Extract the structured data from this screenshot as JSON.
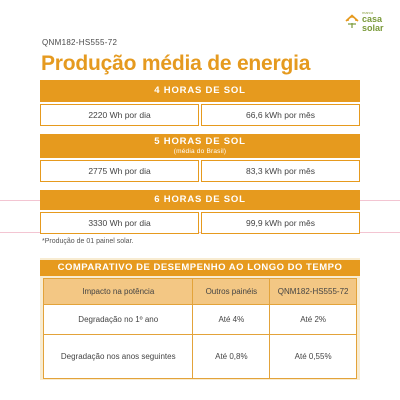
{
  "model": "QNM182-HS555-72",
  "title": "Produção média de energia",
  "logo": {
    "line1": "marca",
    "line2": "casa",
    "line3": "solar"
  },
  "scenarios": [
    {
      "label": "4 HORAS DE SOL",
      "sub": "",
      "daily": "2220 Wh por dia",
      "monthly": "66,6 kWh por mês"
    },
    {
      "label": "5 HORAS DE SOL",
      "sub": "(média do Brasil)",
      "daily": "2775 Wh por dia",
      "monthly": "83,3 kWh por mês"
    },
    {
      "label": "6 HORAS DE SOL",
      "sub": "",
      "daily": "3330 Wh por dia",
      "monthly": "99,9 kWh por mês"
    }
  ],
  "note": "*Produção de 01 painel solar.",
  "comparison": {
    "title": "COMPARATIVO DE DESEMPENHO AO LONGO DO TEMPO",
    "headers": [
      "Impacto na potência",
      "Outros painéis",
      "QNM182-HS555-72"
    ],
    "rows": [
      [
        "Degradação no 1º ano",
        "Até 4%",
        "Até 2%"
      ],
      [
        "Degradação nos anos seguintes",
        "Até 0,8%",
        "Até 0,55%"
      ]
    ]
  },
  "colors": {
    "accent": "#e69a1e",
    "header_fill": "#f3c784",
    "panel_bg": "#f8ecd2",
    "logo_green": "#7a9a3a"
  }
}
